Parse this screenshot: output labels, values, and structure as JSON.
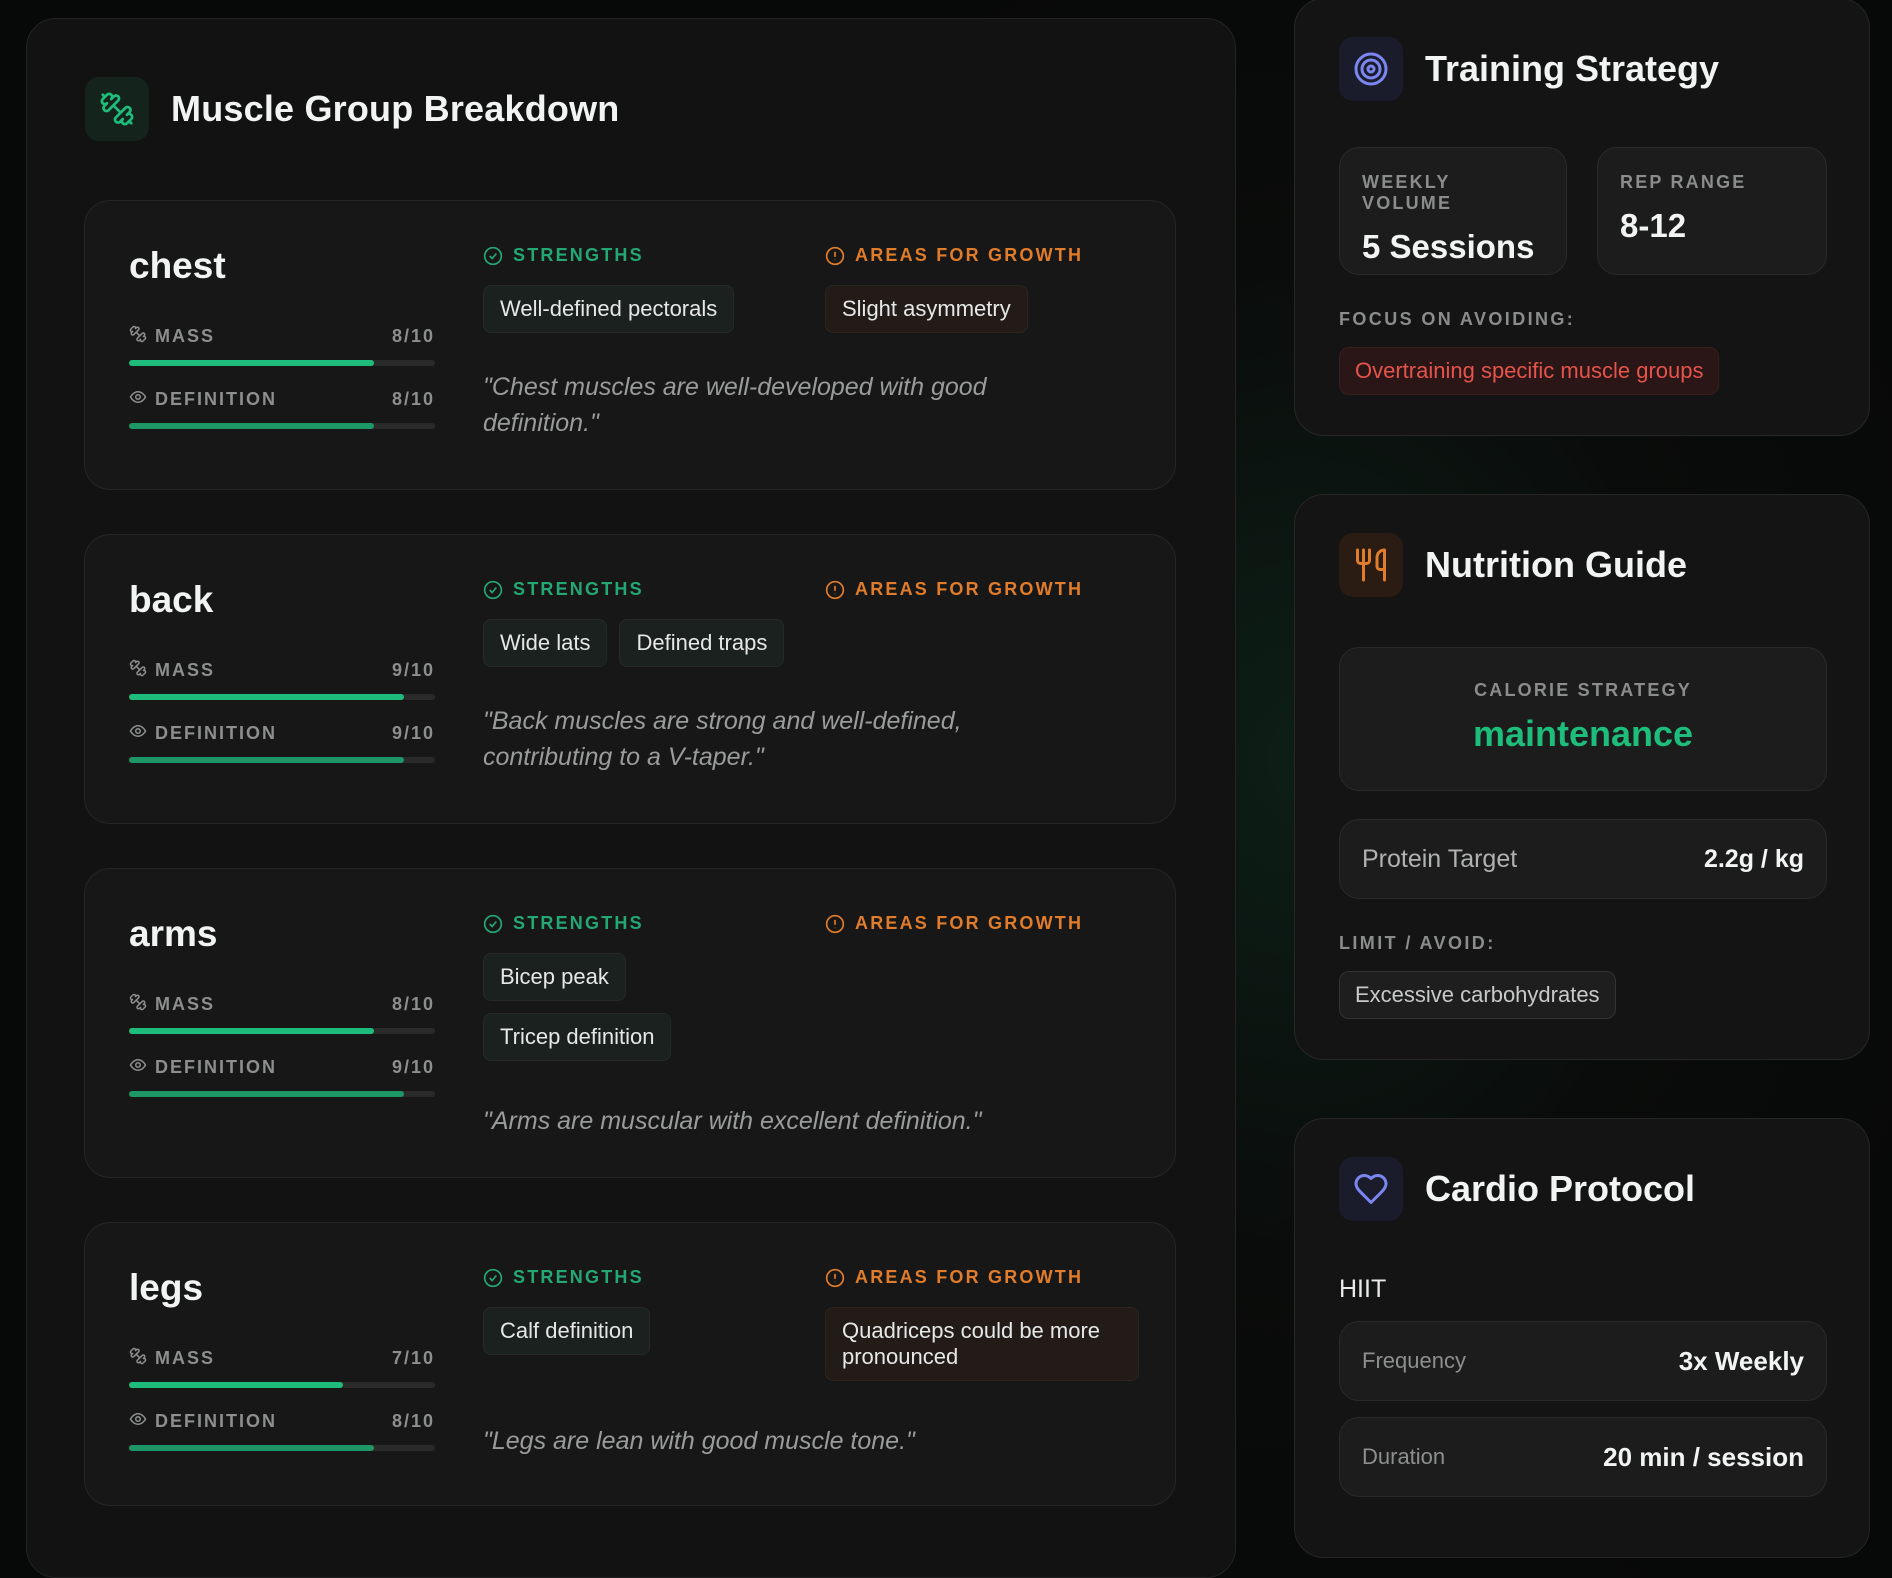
{
  "muscle_breakdown": {
    "title": "Muscle Group Breakdown",
    "icon": "dumbbell-icon",
    "accent": "#1fbd7c",
    "strengths_label": "STRENGTHS",
    "growth_label": "AREAS FOR GROWTH",
    "mass_label": "MASS",
    "definition_label": "DEFINITION",
    "groups": [
      {
        "name": "chest",
        "mass": 8,
        "mass_text": "8/10",
        "definition": 8,
        "definition_text": "8/10",
        "strengths": [
          "Well-defined pectorals"
        ],
        "growth": [
          "Slight asymmetry"
        ],
        "note": "\"Chest muscles are well-developed with good definition.\""
      },
      {
        "name": "back",
        "mass": 9,
        "mass_text": "9/10",
        "definition": 9,
        "definition_text": "9/10",
        "strengths": [
          "Wide lats",
          "Defined traps"
        ],
        "growth": [],
        "note": "\"Back muscles are strong and well-defined, contributing to a V-taper.\""
      },
      {
        "name": "arms",
        "mass": 8,
        "mass_text": "8/10",
        "definition": 9,
        "definition_text": "9/10",
        "strengths": [
          "Bicep peak",
          "Tricep definition"
        ],
        "growth": [],
        "note": "\"Arms are muscular with excellent definition.\""
      },
      {
        "name": "legs",
        "mass": 7,
        "mass_text": "7/10",
        "definition": 8,
        "definition_text": "8/10",
        "strengths": [
          "Calf definition"
        ],
        "growth": [
          "Quadriceps could be more pronounced"
        ],
        "note": "\"Legs are lean with good muscle tone.\""
      }
    ]
  },
  "training_strategy": {
    "title": "Training Strategy",
    "icon": "target-icon",
    "weekly_volume_label": "WEEKLY VOLUME",
    "weekly_volume": "5 Sessions",
    "rep_range_label": "REP RANGE",
    "rep_range": "8-12",
    "avoid_label": "FOCUS ON AVOIDING:",
    "avoid_items": [
      "Overtraining specific muscle groups"
    ]
  },
  "nutrition_guide": {
    "title": "Nutrition Guide",
    "icon": "utensils-icon",
    "calorie_label": "CALORIE STRATEGY",
    "calorie_value": "maintenance",
    "protein_label": "Protein Target",
    "protein_value": "2.2g / kg",
    "limit_label": "LIMIT / AVOID:",
    "limit_items": [
      "Excessive carbohydrates"
    ]
  },
  "cardio_protocol": {
    "title": "Cardio Protocol",
    "icon": "heart-icon",
    "type": "HIIT",
    "frequency_label": "Frequency",
    "frequency_value": "3x Weekly",
    "duration_label": "Duration",
    "duration_value": "20 min / session"
  },
  "colors": {
    "strength": "#24a873",
    "growth": "#e07c2a",
    "danger": "#e5534b",
    "calorie": "#1fbd7c"
  }
}
